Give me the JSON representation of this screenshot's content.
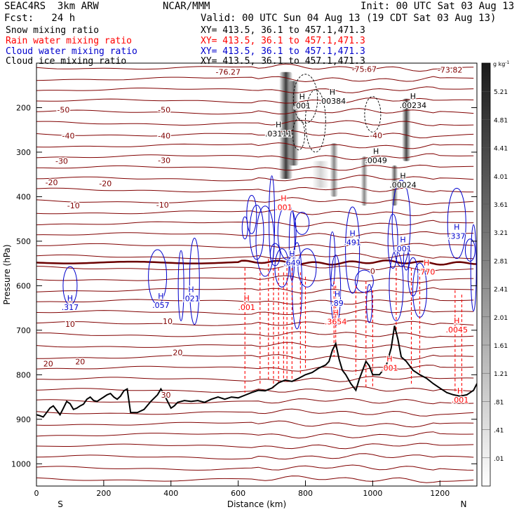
{
  "header": {
    "model": "SEAC4RS  3km ARW",
    "org": "NCAR/MMM",
    "init": "Init: 00 UTC Sat 03 Aug 13",
    "fcst": "Fcst:   24 h",
    "valid": "Valid: 00 UTC Sun 04 Aug 13 (19 CDT Sat 03 Aug 13)",
    "fields": [
      {
        "label": "Snow mixing ratio",
        "xy": "XY= 413.5, 36.1 to 457.1,471.3",
        "color": "#000000"
      },
      {
        "label": "Rain water mixing ratio",
        "xy": "XY= 413.5, 36.1 to 457.1,471.3",
        "color": "#ff0000"
      },
      {
        "label": "Cloud water mixing ratio",
        "xy": "XY= 413.5, 36.1 to 457.1,471.3",
        "color": "#0000cc"
      },
      {
        "label": "Cloud ice mixing ratio",
        "xy": "XY= 413.5, 36.1 to 457.1,471.3",
        "color": "#000000"
      }
    ]
  },
  "colors": {
    "temperature": "#800000",
    "freezing_level": "#6b0000",
    "rain": "#ff0000",
    "cloud_water": "#0000cc",
    "terrain": "#000000"
  },
  "chart_data": {
    "type": "cross-section",
    "xlabel": "Distance (km)",
    "ylabel": "Pressure (hPa)",
    "xlim": [
      0,
      1310
    ],
    "ylim": [
      1050,
      100
    ],
    "x_ticks": [
      "0",
      "200",
      "400",
      "600",
      "800",
      "1000",
      "1200"
    ],
    "y_ticks": [
      "200",
      "300",
      "400",
      "500",
      "600",
      "700",
      "800",
      "900",
      "1000"
    ],
    "x_end_labels": {
      "left": "S",
      "right": "N"
    },
    "colorbar": {
      "unit": "g kg",
      "unit_sup": "-1",
      "levels": [
        "5.21",
        "4.81",
        "4.41",
        "4.01",
        "3.61",
        "3.21",
        "2.81",
        "2.41",
        "2.01",
        "1.61",
        "1.21",
        ".81",
        ".41",
        ".01"
      ]
    },
    "temperature_isotherm_labels": [
      {
        "text": "-76.27",
        "x": 570,
        "p": 120
      },
      {
        "text": "-75.67",
        "x": 975,
        "p": 113
      },
      {
        "text": "-73.82",
        "x": 1230,
        "p": 115
      },
      {
        "text": "-50",
        "x": 80,
        "p": 205
      },
      {
        "text": "-50",
        "x": 380,
        "p": 205
      },
      {
        "text": "-40",
        "x": 95,
        "p": 263
      },
      {
        "text": "-40",
        "x": 380,
        "p": 263
      },
      {
        "text": "-40",
        "x": 1010,
        "p": 262
      },
      {
        "text": "-30",
        "x": 75,
        "p": 320
      },
      {
        "text": "-30",
        "x": 380,
        "p": 318
      },
      {
        "text": "-20",
        "x": 45,
        "p": 368
      },
      {
        "text": "-20",
        "x": 205,
        "p": 370
      },
      {
        "text": "-10",
        "x": 110,
        "p": 420
      },
      {
        "text": "-10",
        "x": 375,
        "p": 418
      },
      {
        "text": "0",
        "x": 1000,
        "p": 567
      },
      {
        "text": "10",
        "x": 100,
        "p": 686
      },
      {
        "text": "10",
        "x": 390,
        "p": 680
      },
      {
        "text": "20",
        "x": 35,
        "p": 775
      },
      {
        "text": "20",
        "x": 130,
        "p": 770
      },
      {
        "text": "20",
        "x": 420,
        "p": 750
      },
      {
        "text": "30",
        "x": 385,
        "p": 845
      }
    ],
    "max_labels": [
      {
        "text": ".03111",
        "x": 720,
        "p": 260,
        "color": "#000000"
      },
      {
        "text": ".001",
        "x": 790,
        "p": 197,
        "color": "#000000"
      },
      {
        "text": ".00384",
        "x": 880,
        "p": 187,
        "color": "#000000"
      },
      {
        "text": ".00234",
        "x": 1120,
        "p": 196,
        "color": "#000000"
      },
      {
        "text": ".0049",
        "x": 1010,
        "p": 320,
        "color": "#000000"
      },
      {
        "text": ".00024",
        "x": 1090,
        "p": 375,
        "color": "#000000"
      },
      {
        "text": ".001",
        "x": 735,
        "p": 425,
        "color": "#ff0000"
      },
      {
        "text": ".3654",
        "x": 890,
        "p": 682,
        "color": "#ff0000"
      },
      {
        "text": ".0045",
        "x": 1250,
        "p": 700,
        "color": "#ff0000"
      },
      {
        "text": ".001",
        "x": 1260,
        "p": 858,
        "color": "#ff0000"
      },
      {
        "text": ".001",
        "x": 625,
        "p": 650,
        "color": "#ff0000"
      },
      {
        "text": ".001",
        "x": 1050,
        "p": 786,
        "color": "#ff0000"
      },
      {
        "text": ".770",
        "x": 1160,
        "p": 570,
        "color": "#ff0000"
      },
      {
        "text": ".317",
        "x": 100,
        "p": 650,
        "color": "#0000cc"
      },
      {
        "text": ".057",
        "x": 370,
        "p": 645,
        "color": "#0000cc"
      },
      {
        "text": ".021",
        "x": 460,
        "p": 630,
        "color": "#0000cc"
      },
      {
        "text": ".491",
        "x": 940,
        "p": 504,
        "color": "#0000cc"
      },
      {
        "text": ".649",
        "x": 760,
        "p": 550,
        "color": "#0000cc"
      },
      {
        "text": ".337",
        "x": 1250,
        "p": 490,
        "color": "#0000cc"
      },
      {
        "text": ".89",
        "x": 895,
        "p": 640,
        "color": "#0000cc"
      },
      {
        "text": ".001",
        "x": 1090,
        "p": 518,
        "color": "#0000cc"
      }
    ],
    "terrain_profile": [
      [
        0,
        890
      ],
      [
        10,
        892
      ],
      [
        20,
        895
      ],
      [
        30,
        885
      ],
      [
        40,
        875
      ],
      [
        50,
        870
      ],
      [
        60,
        880
      ],
      [
        70,
        890
      ],
      [
        80,
        875
      ],
      [
        90,
        860
      ],
      [
        100,
        865
      ],
      [
        110,
        878
      ],
      [
        120,
        875
      ],
      [
        130,
        870
      ],
      [
        140,
        866
      ],
      [
        150,
        855
      ],
      [
        160,
        850
      ],
      [
        170,
        858
      ],
      [
        180,
        860
      ],
      [
        190,
        855
      ],
      [
        200,
        850
      ],
      [
        210,
        845
      ],
      [
        220,
        842
      ],
      [
        230,
        850
      ],
      [
        240,
        855
      ],
      [
        250,
        848
      ],
      [
        260,
        836
      ],
      [
        270,
        832
      ],
      [
        280,
        885
      ],
      [
        300,
        885
      ],
      [
        320,
        878
      ],
      [
        340,
        860
      ],
      [
        360,
        845
      ],
      [
        370,
        832
      ],
      [
        380,
        845
      ],
      [
        390,
        860
      ],
      [
        400,
        875
      ],
      [
        410,
        870
      ],
      [
        420,
        862
      ],
      [
        440,
        858
      ],
      [
        460,
        860
      ],
      [
        480,
        858
      ],
      [
        500,
        862
      ],
      [
        520,
        855
      ],
      [
        540,
        850
      ],
      [
        560,
        855
      ],
      [
        580,
        850
      ],
      [
        600,
        852
      ],
      [
        620,
        846
      ],
      [
        640,
        840
      ],
      [
        660,
        835
      ],
      [
        680,
        836
      ],
      [
        700,
        830
      ],
      [
        720,
        818
      ],
      [
        740,
        812
      ],
      [
        760,
        815
      ],
      [
        780,
        808
      ],
      [
        800,
        800
      ],
      [
        820,
        795
      ],
      [
        840,
        785
      ],
      [
        860,
        778
      ],
      [
        870,
        770
      ],
      [
        880,
        745
      ],
      [
        890,
        730
      ],
      [
        900,
        765
      ],
      [
        910,
        790
      ],
      [
        920,
        800
      ],
      [
        935,
        820
      ],
      [
        950,
        835
      ],
      [
        960,
        810
      ],
      [
        970,
        790
      ],
      [
        980,
        770
      ],
      [
        990,
        780
      ],
      [
        1000,
        800
      ],
      [
        1020,
        800
      ],
      [
        1040,
        780
      ],
      [
        1055,
        740
      ],
      [
        1065,
        690
      ],
      [
        1075,
        720
      ],
      [
        1085,
        760
      ],
      [
        1100,
        770
      ],
      [
        1120,
        790
      ],
      [
        1140,
        800
      ],
      [
        1160,
        808
      ],
      [
        1180,
        820
      ],
      [
        1200,
        830
      ],
      [
        1220,
        840
      ],
      [
        1240,
        845
      ],
      [
        1260,
        848
      ],
      [
        1280,
        845
      ],
      [
        1300,
        835
      ],
      [
        1310,
        820
      ]
    ]
  }
}
